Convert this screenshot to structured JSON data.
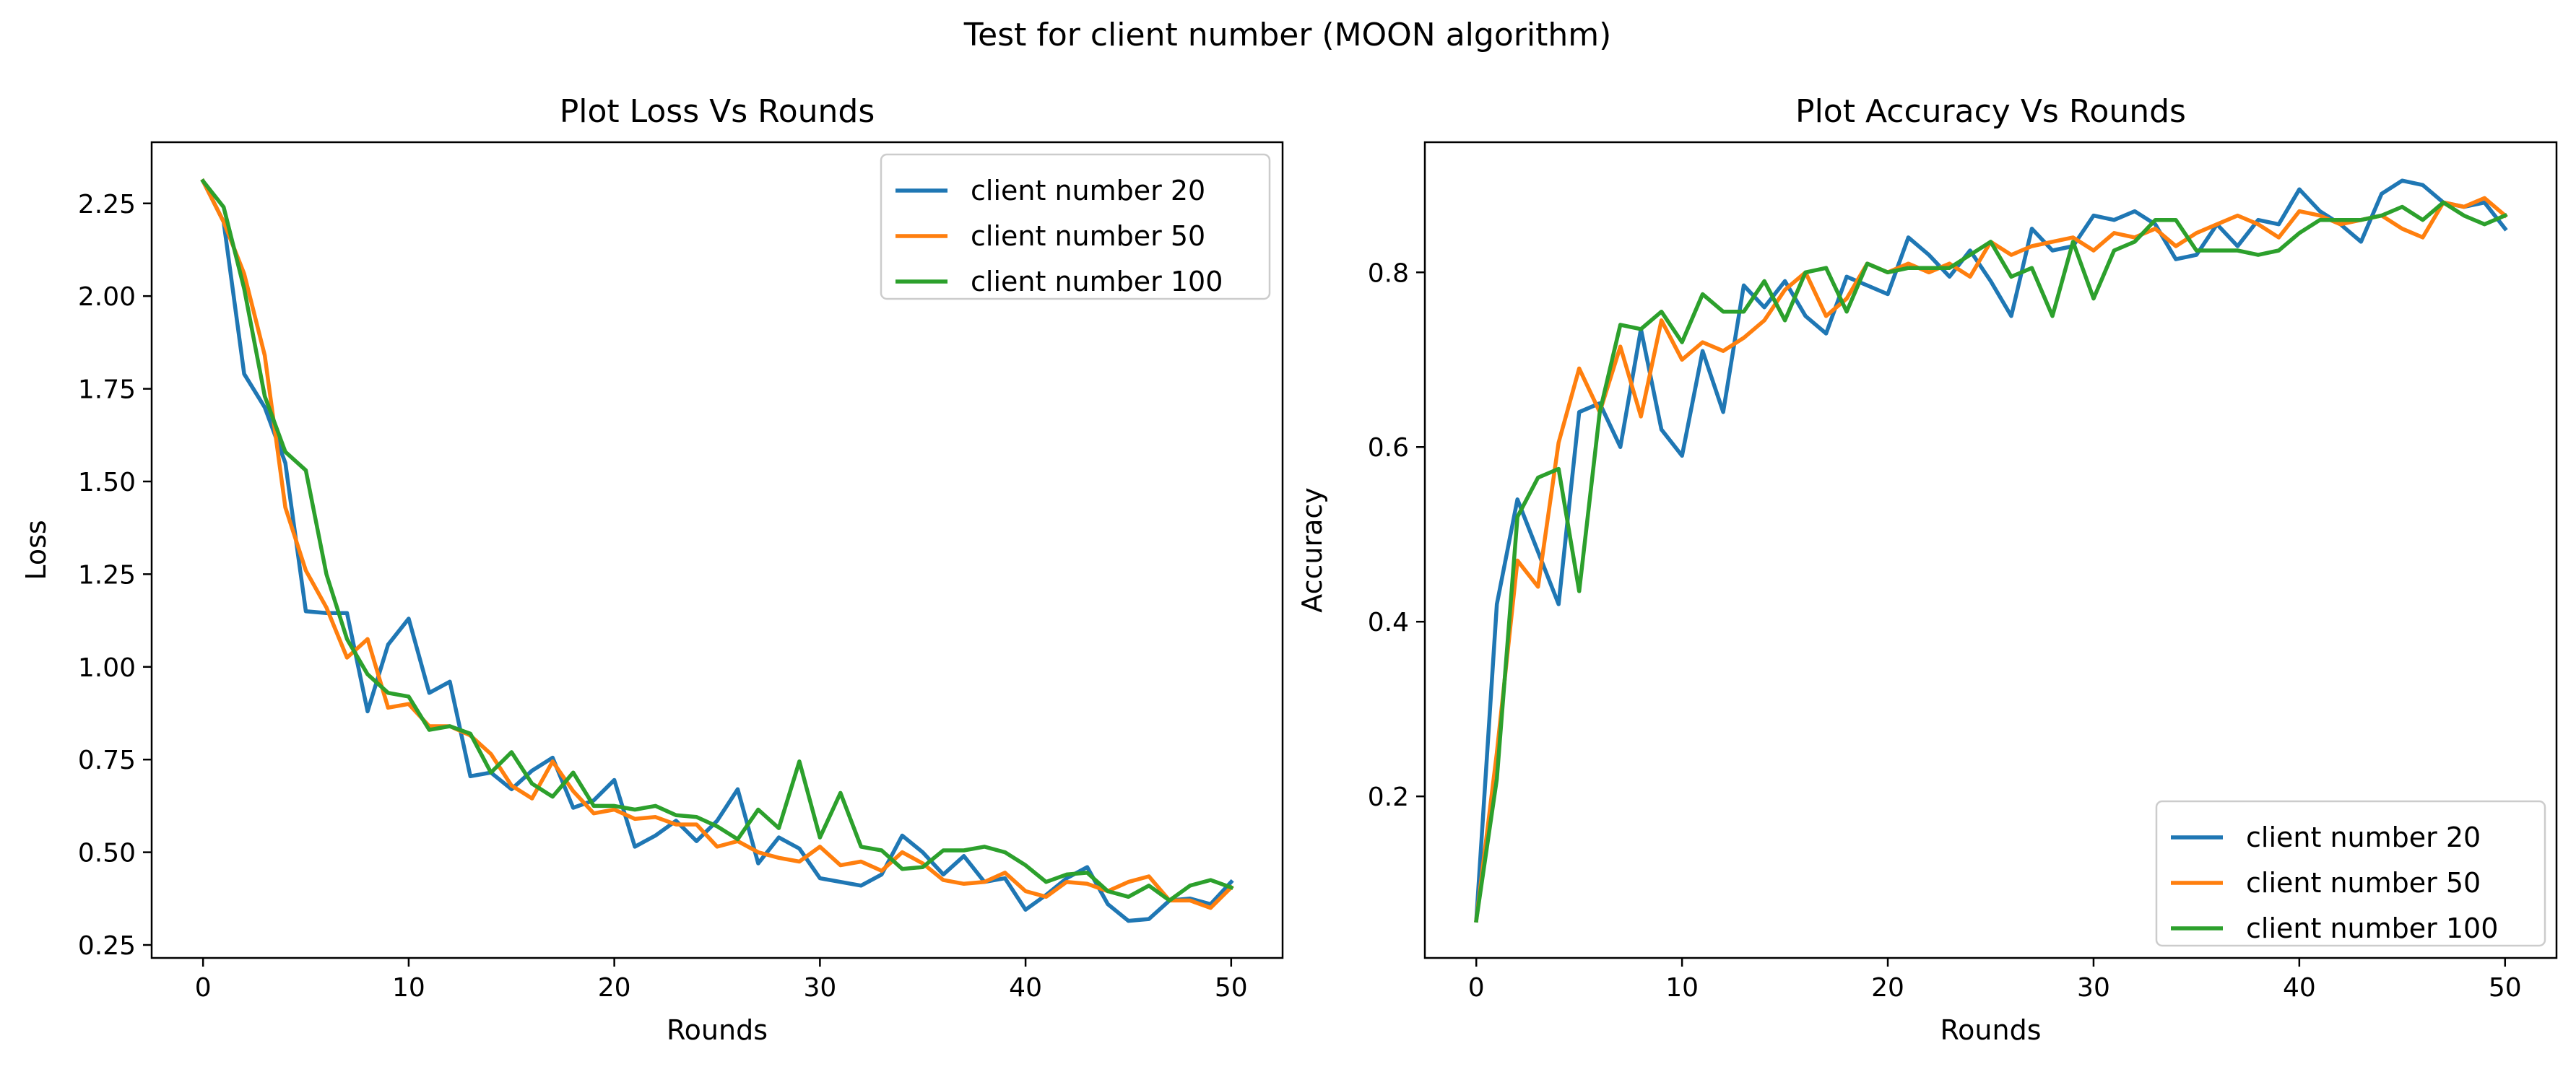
{
  "figure_title": "Test for client number (MOON algorithm)",
  "colors": {
    "client_number_20": "#1f77b4",
    "client_number_50": "#ff7f0e",
    "client_number_100": "#2ca02c"
  },
  "chart_data": [
    {
      "type": "line",
      "title": "Plot Loss Vs Rounds",
      "xlabel": "Rounds",
      "ylabel": "Loss",
      "xlim": [
        -2.5,
        52.5
      ],
      "ylim": [
        0.215,
        2.415
      ],
      "xticks": [
        0,
        10,
        20,
        30,
        40,
        50
      ],
      "xtick_labels": [
        "0",
        "10",
        "20",
        "30",
        "40",
        "50"
      ],
      "yticks": [
        0.25,
        0.5,
        0.75,
        1.0,
        1.25,
        1.5,
        1.75,
        2.0,
        2.25
      ],
      "ytick_labels": [
        "0.25",
        "0.50",
        "0.75",
        "1.00",
        "1.25",
        "1.50",
        "1.75",
        "2.00",
        "2.25"
      ],
      "grid": false,
      "legend_position": "upper right",
      "x": [
        0,
        1,
        2,
        3,
        4,
        5,
        6,
        7,
        8,
        9,
        10,
        11,
        12,
        13,
        14,
        15,
        16,
        17,
        18,
        19,
        20,
        21,
        22,
        23,
        24,
        25,
        26,
        27,
        28,
        29,
        30,
        31,
        32,
        33,
        34,
        35,
        36,
        37,
        38,
        39,
        40,
        41,
        42,
        43,
        44,
        45,
        46,
        47,
        48,
        49,
        50
      ],
      "series": [
        {
          "name": "client number 20",
          "color": "#1f77b4",
          "values": [
            2.31,
            2.2,
            1.79,
            1.7,
            1.55,
            1.15,
            1.145,
            1.145,
            0.88,
            1.06,
            1.13,
            0.93,
            0.96,
            0.705,
            0.715,
            0.67,
            0.72,
            0.755,
            0.62,
            0.64,
            0.695,
            0.515,
            0.545,
            0.585,
            0.53,
            0.585,
            0.67,
            0.47,
            0.54,
            0.51,
            0.43,
            0.42,
            0.41,
            0.44,
            0.545,
            0.5,
            0.44,
            0.49,
            0.42,
            0.43,
            0.345,
            0.385,
            0.43,
            0.46,
            0.36,
            0.315,
            0.32,
            0.37,
            0.375,
            0.36,
            0.42
          ]
        },
        {
          "name": "client number 50",
          "color": "#ff7f0e",
          "values": [
            2.31,
            2.2,
            2.06,
            1.84,
            1.43,
            1.26,
            1.16,
            1.025,
            1.075,
            0.89,
            0.9,
            0.84,
            0.84,
            0.815,
            0.765,
            0.68,
            0.645,
            0.745,
            0.665,
            0.605,
            0.615,
            0.59,
            0.595,
            0.575,
            0.575,
            0.515,
            0.53,
            0.5,
            0.485,
            0.475,
            0.515,
            0.465,
            0.475,
            0.45,
            0.5,
            0.47,
            0.425,
            0.415,
            0.42,
            0.445,
            0.395,
            0.38,
            0.42,
            0.415,
            0.395,
            0.42,
            0.435,
            0.37,
            0.37,
            0.35,
            0.405
          ]
        },
        {
          "name": "client number 100",
          "color": "#2ca02c",
          "values": [
            2.31,
            2.24,
            2.02,
            1.73,
            1.58,
            1.53,
            1.25,
            1.075,
            0.98,
            0.93,
            0.92,
            0.83,
            0.84,
            0.82,
            0.715,
            0.77,
            0.685,
            0.65,
            0.715,
            0.625,
            0.625,
            0.615,
            0.625,
            0.6,
            0.595,
            0.57,
            0.535,
            0.615,
            0.565,
            0.745,
            0.54,
            0.66,
            0.515,
            0.505,
            0.455,
            0.46,
            0.505,
            0.505,
            0.515,
            0.5,
            0.465,
            0.42,
            0.44,
            0.445,
            0.395,
            0.38,
            0.41,
            0.37,
            0.41,
            0.425,
            0.405
          ]
        }
      ]
    },
    {
      "type": "line",
      "title": "Plot Accuracy Vs Rounds",
      "xlabel": "Rounds",
      "ylabel": "Accuracy",
      "xlim": [
        -2.5,
        52.5
      ],
      "ylim": [
        0.015,
        0.949
      ],
      "xticks": [
        0,
        10,
        20,
        30,
        40,
        50
      ],
      "xtick_labels": [
        "0",
        "10",
        "20",
        "30",
        "40",
        "50"
      ],
      "yticks": [
        0.2,
        0.4,
        0.6,
        0.8
      ],
      "ytick_labels": [
        "0.2",
        "0.4",
        "0.6",
        "0.8"
      ],
      "grid": false,
      "legend_position": "lower right",
      "x": [
        0,
        1,
        2,
        3,
        4,
        5,
        6,
        7,
        8,
        9,
        10,
        11,
        12,
        13,
        14,
        15,
        16,
        17,
        18,
        19,
        20,
        21,
        22,
        23,
        24,
        25,
        26,
        27,
        28,
        29,
        30,
        31,
        32,
        33,
        34,
        35,
        36,
        37,
        38,
        39,
        40,
        41,
        42,
        43,
        44,
        45,
        46,
        47,
        48,
        49,
        50
      ],
      "series": [
        {
          "name": "client number 20",
          "color": "#1f77b4",
          "values": [
            0.058,
            0.42,
            0.54,
            0.48,
            0.42,
            0.64,
            0.65,
            0.6,
            0.735,
            0.62,
            0.59,
            0.71,
            0.64,
            0.785,
            0.76,
            0.79,
            0.75,
            0.73,
            0.795,
            0.785,
            0.775,
            0.84,
            0.82,
            0.795,
            0.825,
            0.79,
            0.75,
            0.85,
            0.825,
            0.83,
            0.865,
            0.86,
            0.87,
            0.855,
            0.815,
            0.82,
            0.855,
            0.83,
            0.86,
            0.855,
            0.895,
            0.87,
            0.855,
            0.835,
            0.89,
            0.905,
            0.9,
            0.88,
            0.875,
            0.88,
            0.85
          ]
        },
        {
          "name": "client number 50",
          "color": "#ff7f0e",
          "values": [
            0.058,
            0.25,
            0.47,
            0.44,
            0.605,
            0.69,
            0.64,
            0.715,
            0.635,
            0.745,
            0.7,
            0.72,
            0.71,
            0.725,
            0.745,
            0.78,
            0.8,
            0.75,
            0.77,
            0.81,
            0.8,
            0.81,
            0.8,
            0.81,
            0.795,
            0.835,
            0.82,
            0.83,
            0.835,
            0.84,
            0.825,
            0.845,
            0.84,
            0.85,
            0.83,
            0.845,
            0.855,
            0.865,
            0.855,
            0.84,
            0.87,
            0.865,
            0.855,
            0.86,
            0.865,
            0.85,
            0.84,
            0.88,
            0.875,
            0.885,
            0.865
          ]
        },
        {
          "name": "client number 100",
          "color": "#2ca02c",
          "values": [
            0.058,
            0.22,
            0.52,
            0.565,
            0.575,
            0.435,
            0.64,
            0.74,
            0.735,
            0.755,
            0.72,
            0.775,
            0.755,
            0.755,
            0.79,
            0.745,
            0.8,
            0.805,
            0.755,
            0.81,
            0.8,
            0.805,
            0.805,
            0.805,
            0.82,
            0.835,
            0.795,
            0.805,
            0.75,
            0.835,
            0.77,
            0.825,
            0.835,
            0.86,
            0.86,
            0.825,
            0.825,
            0.825,
            0.82,
            0.825,
            0.845,
            0.86,
            0.86,
            0.86,
            0.865,
            0.875,
            0.86,
            0.88,
            0.865,
            0.855,
            0.865
          ]
        }
      ]
    }
  ]
}
